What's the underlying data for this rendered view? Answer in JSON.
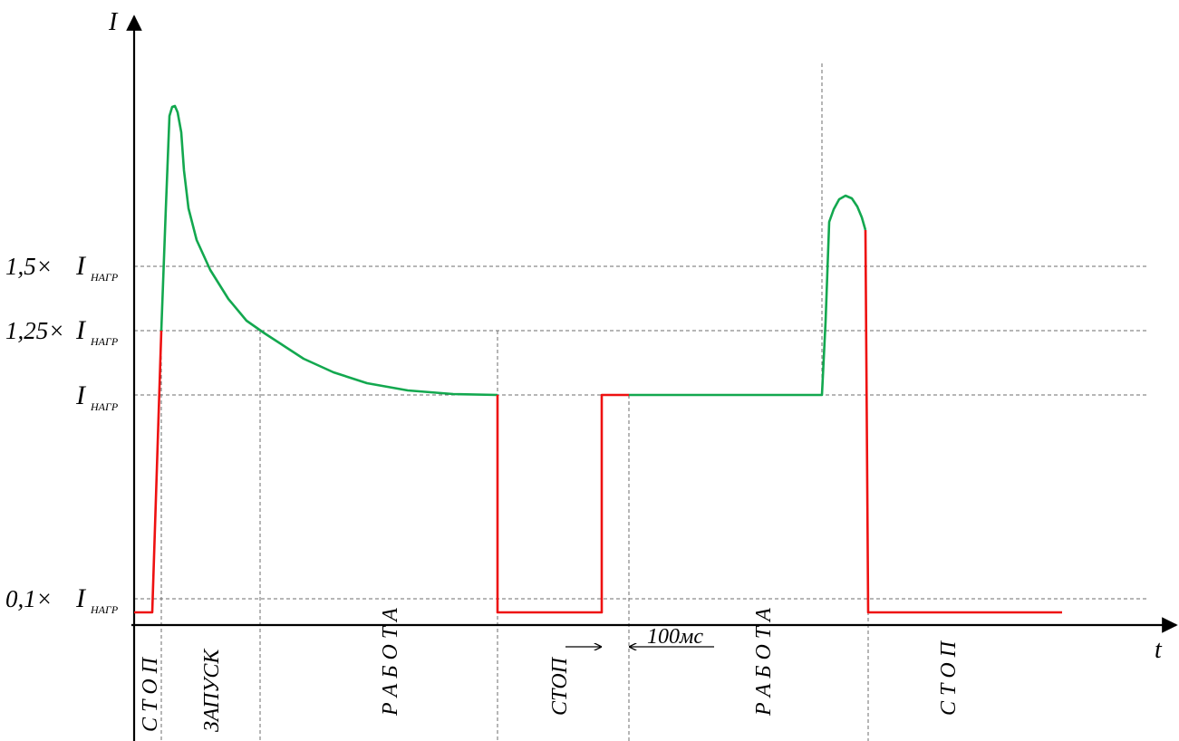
{
  "colors": {
    "running": "#13a84f",
    "stopped": "#ee1111",
    "axis": "#000000",
    "gridline": "#6d6d6d"
  },
  "axes": {
    "y_label": "I",
    "x_label": "t"
  },
  "levels": [
    {
      "id": "l15",
      "prefix": "1,5×",
      "symbol": "I",
      "sub": "НАГР"
    },
    {
      "id": "l125",
      "prefix": "1,25×",
      "symbol": "I",
      "sub": "НАГР"
    },
    {
      "id": "l1",
      "prefix": "",
      "symbol": "I",
      "sub": "НАГР"
    },
    {
      "id": "l01",
      "prefix": "0,1×",
      "symbol": "I",
      "sub": "НАГР"
    }
  ],
  "phases": [
    "С Т О П",
    "ЗАПУСК",
    "Р А Б О Т А",
    "СТОП",
    "Р А Б О Т А",
    "С Т О П"
  ],
  "delay_label": "100мс"
}
